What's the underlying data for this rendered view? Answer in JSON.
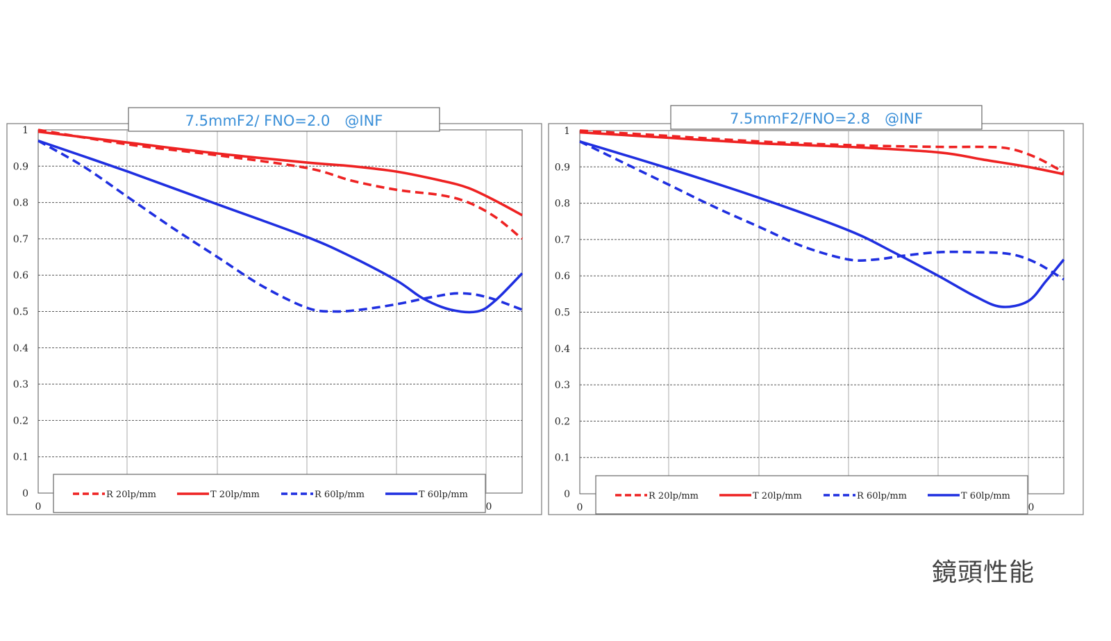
{
  "caption": "鏡頭性能",
  "colors": {
    "red": "#ee2222",
    "blue": "#1f2fe0",
    "title_text": "#3a8fd8",
    "grid_h": "#555555",
    "grid_v": "#aaaaaa"
  },
  "chart_data": [
    {
      "type": "line",
      "title": "7.5mmF2/ FNO=2.0　@INF",
      "x_tick_labels": [
        "0",
        "0"
      ],
      "y_tick_labels": [
        "0",
        "0.1",
        "0.2",
        "0.3",
        "0.4",
        "0.5",
        "0.6",
        "0.7",
        "0.8",
        "0.9",
        "1"
      ],
      "ylim": [
        0,
        1
      ],
      "xlim": [
        0,
        5.4
      ],
      "grid": true,
      "legend_position": "bottom",
      "series": [
        {
          "name": "R 20lp/mm",
          "color": "red",
          "style": "dashed",
          "x": [
            0,
            1,
            2,
            3,
            3.5,
            4,
            4.5,
            4.8,
            5.1,
            5.4
          ],
          "y": [
            1.0,
            0.96,
            0.93,
            0.895,
            0.86,
            0.835,
            0.82,
            0.8,
            0.76,
            0.7
          ]
        },
        {
          "name": "T 20lp/mm",
          "color": "red",
          "style": "solid",
          "x": [
            0,
            1,
            2,
            3,
            3.5,
            4,
            4.5,
            4.8,
            5.1,
            5.4
          ],
          "y": [
            0.995,
            0.965,
            0.935,
            0.91,
            0.9,
            0.885,
            0.86,
            0.84,
            0.805,
            0.765
          ]
        },
        {
          "name": "R 60lp/mm",
          "color": "blue",
          "style": "dashed",
          "x": [
            0,
            0.5,
            1,
            1.5,
            2,
            2.5,
            3,
            3.3,
            3.6,
            4,
            4.4,
            4.7,
            5,
            5.4
          ],
          "y": [
            0.97,
            0.9,
            0.815,
            0.73,
            0.65,
            0.57,
            0.51,
            0.5,
            0.505,
            0.52,
            0.54,
            0.55,
            0.54,
            0.505
          ]
        },
        {
          "name": "T 60lp/mm",
          "color": "blue",
          "style": "solid",
          "x": [
            0,
            1,
            2,
            3,
            3.5,
            4,
            4.3,
            4.6,
            4.9,
            5.1,
            5.4
          ],
          "y": [
            0.97,
            0.885,
            0.795,
            0.705,
            0.65,
            0.585,
            0.535,
            0.505,
            0.5,
            0.53,
            0.605
          ]
        }
      ]
    },
    {
      "type": "line",
      "title": "7.5mmF2/FNO=2.8　@INF",
      "x_tick_labels": [
        "0",
        "0"
      ],
      "y_tick_labels": [
        "0",
        "0.1",
        "0.2",
        "0.3",
        "0.4",
        "0.5",
        "0.6",
        "0.7",
        "0.8",
        "0.9",
        "1"
      ],
      "ylim": [
        0,
        1
      ],
      "xlim": [
        0,
        5.4
      ],
      "grid": true,
      "legend_position": "bottom",
      "series": [
        {
          "name": "R 20lp/mm",
          "color": "red",
          "style": "dashed",
          "x": [
            0,
            1,
            2,
            3,
            4,
            4.5,
            4.8,
            5.1,
            5.4
          ],
          "y": [
            1.0,
            0.985,
            0.97,
            0.96,
            0.955,
            0.955,
            0.95,
            0.925,
            0.885
          ]
        },
        {
          "name": "T 20lp/mm",
          "color": "red",
          "style": "solid",
          "x": [
            0,
            1,
            2,
            3,
            4,
            4.5,
            5,
            5.4
          ],
          "y": [
            0.995,
            0.98,
            0.965,
            0.955,
            0.94,
            0.92,
            0.9,
            0.88
          ]
        },
        {
          "name": "R 60lp/mm",
          "color": "blue",
          "style": "dashed",
          "x": [
            0,
            0.5,
            1,
            1.5,
            2,
            2.5,
            3,
            3.3,
            3.6,
            4,
            4.4,
            4.8,
            5.1,
            5.4
          ],
          "y": [
            0.97,
            0.91,
            0.85,
            0.79,
            0.735,
            0.68,
            0.645,
            0.645,
            0.655,
            0.665,
            0.665,
            0.66,
            0.635,
            0.59
          ]
        },
        {
          "name": "T 60lp/mm",
          "color": "blue",
          "style": "solid",
          "x": [
            0,
            1,
            2,
            3,
            3.5,
            4,
            4.4,
            4.7,
            5.0,
            5.2,
            5.4
          ],
          "y": [
            0.97,
            0.895,
            0.815,
            0.725,
            0.665,
            0.6,
            0.545,
            0.515,
            0.53,
            0.585,
            0.645
          ]
        }
      ]
    }
  ]
}
